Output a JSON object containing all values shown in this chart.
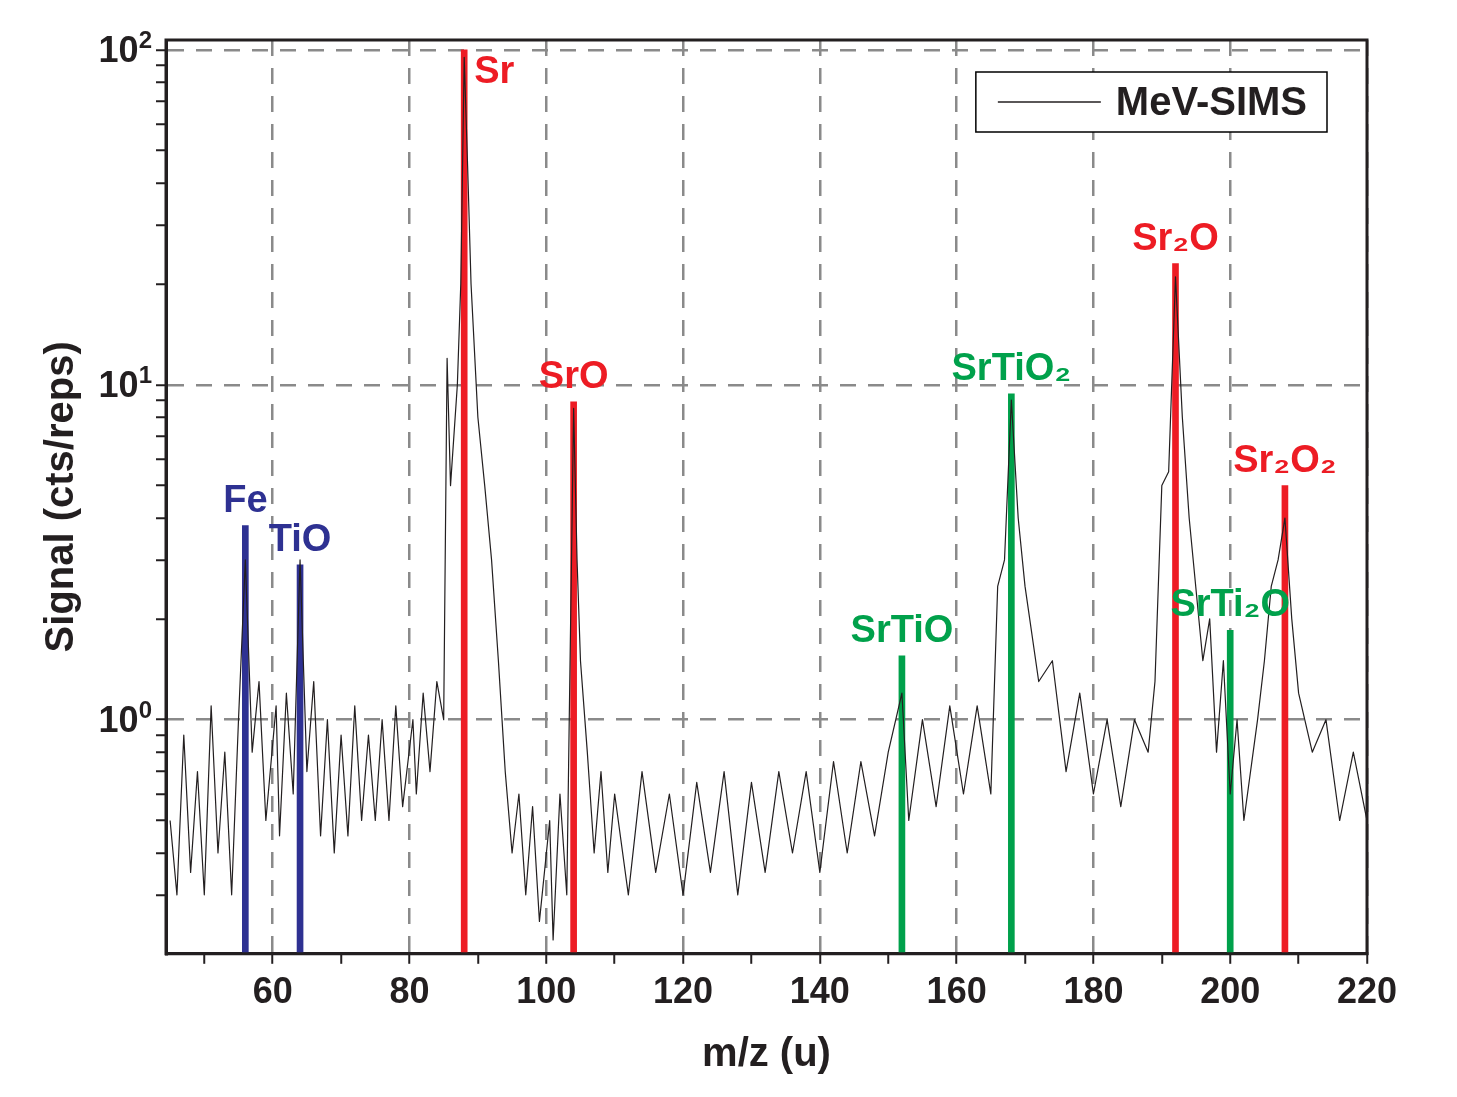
{
  "chart_data": {
    "type": "line",
    "xlabel": "m/z (u)",
    "ylabel": "Signal (cts/reps)",
    "xlim": [
      44.4,
      220
    ],
    "ylim": [
      0.2,
      107
    ],
    "xticks": [
      {
        "value": 50,
        "label": null
      },
      60,
      {
        "value": 70,
        "label": null
      },
      80,
      {
        "value": 90,
        "label": null
      },
      100,
      {
        "value": 110,
        "label": null
      },
      120,
      {
        "value": 130,
        "label": null
      },
      140,
      {
        "value": 150,
        "label": null
      },
      160,
      {
        "value": 170,
        "label": null
      },
      180,
      {
        "value": 190,
        "label": null
      },
      200,
      {
        "value": 210,
        "label": null
      },
      220
    ],
    "yticks": [
      {
        "value": 0.3,
        "label": null
      },
      {
        "value": 0.4,
        "label": null
      },
      {
        "value": 0.5,
        "label": null
      },
      {
        "value": 0.6,
        "label": null
      },
      {
        "value": 0.7,
        "label": null
      },
      {
        "value": 0.8,
        "label": null
      },
      {
        "value": 0.9,
        "label": null
      },
      {
        "value": 1,
        "label": "10$^{0}$"
      },
      {
        "value": 2,
        "label": null
      },
      {
        "value": 3,
        "label": null
      },
      {
        "value": 4,
        "label": null
      },
      {
        "value": 5,
        "label": null
      },
      {
        "value": 6,
        "label": null
      },
      {
        "value": 7,
        "label": null
      },
      {
        "value": 8,
        "label": null
      },
      {
        "value": 9,
        "label": null
      },
      {
        "value": 10,
        "label": "10$^{1}$"
      },
      {
        "value": 20,
        "label": null
      },
      {
        "value": 30,
        "label": null
      },
      {
        "value": 40,
        "label": null
      },
      {
        "value": 50,
        "label": null
      },
      {
        "value": 60,
        "label": null
      },
      {
        "value": 70,
        "label": null
      },
      {
        "value": 80,
        "label": null
      },
      {
        "value": 90,
        "label": null
      },
      {
        "value": 100,
        "label": "10$^{2}$"
      }
    ],
    "log": "y",
    "grid": "xy",
    "legend": "top right",
    "marker": "none",
    "line_style": "solid",
    "series": [
      {
        "name": "MeV-SIMS",
        "color": "#231f20",
        "x": [
          45,
          46,
          47,
          48,
          49,
          50,
          51,
          52,
          53,
          54,
          55,
          56,
          57,
          58,
          59,
          60.5,
          61,
          62,
          63,
          64,
          65,
          66,
          67,
          68,
          69,
          70,
          71,
          72,
          73,
          74,
          75,
          76,
          77,
          78,
          79,
          80.5,
          81,
          82,
          83,
          84,
          85,
          85.5,
          86,
          87,
          87.5,
          88,
          88.5,
          89,
          90,
          91,
          92,
          93,
          94,
          95,
          96,
          97,
          98,
          99,
          100.5,
          101,
          102,
          103,
          104,
          104.5,
          105,
          106,
          107,
          108,
          109,
          110,
          112,
          114,
          116,
          118,
          120,
          122,
          124,
          126,
          128,
          130,
          132,
          134,
          136,
          138,
          140,
          142,
          144,
          146,
          148,
          150,
          152,
          153,
          155,
          157,
          159,
          161,
          163,
          165,
          166,
          167,
          168,
          169,
          170,
          172,
          174,
          176,
          178,
          180,
          182,
          184,
          186,
          188,
          189,
          190,
          191,
          192,
          193,
          194,
          196,
          197,
          198,
          199,
          200,
          201,
          202,
          204,
          205,
          206,
          207,
          208,
          209,
          210,
          212,
          214,
          216,
          218,
          220
        ],
        "values": [
          0.5,
          0.3,
          0.9,
          0.35,
          0.7,
          0.3,
          1.1,
          0.4,
          0.8,
          0.3,
          1.0,
          3.0,
          0.8,
          1.3,
          0.5,
          1.1,
          0.45,
          1.2,
          0.6,
          3.0,
          0.7,
          1.3,
          0.45,
          1.0,
          0.4,
          0.9,
          0.45,
          1.1,
          0.5,
          0.9,
          0.5,
          1.0,
          0.5,
          1.1,
          0.55,
          1.0,
          0.6,
          1.2,
          0.7,
          1.3,
          1.0,
          12,
          5,
          10,
          20,
          95,
          45,
          20,
          8,
          5,
          3,
          1.5,
          0.7,
          0.4,
          0.6,
          0.3,
          0.55,
          0.25,
          0.5,
          0.22,
          0.6,
          0.3,
          8.5,
          3,
          1.5,
          0.8,
          0.4,
          0.7,
          0.35,
          0.6,
          0.3,
          0.7,
          0.35,
          0.6,
          0.3,
          0.65,
          0.35,
          0.7,
          0.3,
          0.65,
          0.35,
          0.7,
          0.4,
          0.7,
          0.35,
          0.75,
          0.4,
          0.75,
          0.45,
          0.8,
          1.2,
          0.5,
          1.0,
          0.55,
          1.1,
          0.6,
          1.1,
          0.6,
          2.5,
          3.0,
          9.0,
          4,
          2.5,
          1.3,
          1.5,
          0.7,
          1.2,
          0.6,
          1.0,
          0.55,
          1.0,
          0.8,
          1.3,
          5,
          5.5,
          21,
          8,
          4,
          1.5,
          2,
          0.8,
          1.5,
          0.6,
          1.0,
          0.5,
          1.0,
          1.5,
          2.5,
          3.0,
          4,
          2,
          1.2,
          0.8,
          1.0,
          0.5,
          0.8,
          0.5
        ]
      },
      {
        "type": "bar",
        "x": [
          56,
          64,
          88,
          104,
          152,
          168,
          192,
          200,
          208
        ],
        "values": [
          3.8,
          2.9,
          100,
          8.9,
          1.55,
          9.4,
          23,
          1.85,
          5
        ],
        "colors": [
          "#2e3192",
          "#2e3192",
          "#ed1c24",
          "#ed1c24",
          "#00a14b",
          "#00a14b",
          "#ed1c24",
          "#00a14b",
          "#ed1c24"
        ]
      }
    ],
    "annotations": [
      {
        "text": "Fe",
        "x": 56,
        "y": 3.8
      },
      {
        "text": "TiO",
        "x": 64,
        "y": 2.9
      },
      {
        "text": "Sr",
        "x": 88,
        "y": 100
      },
      {
        "text": "SrO",
        "x": 104,
        "y": 8.9
      },
      {
        "text": "SrTiO",
        "x": 152,
        "y": 1.55
      },
      {
        "text": "SrTiO₂",
        "x": 168,
        "y": 9.4
      },
      {
        "text": "Sr₂O",
        "x": 192,
        "y": 23
      },
      {
        "text": "SrTi₂O",
        "x": 200,
        "y": 1.85
      },
      {
        "text": "Sr₂O₂",
        "x": 208,
        "y": 5
      }
    ]
  }
}
